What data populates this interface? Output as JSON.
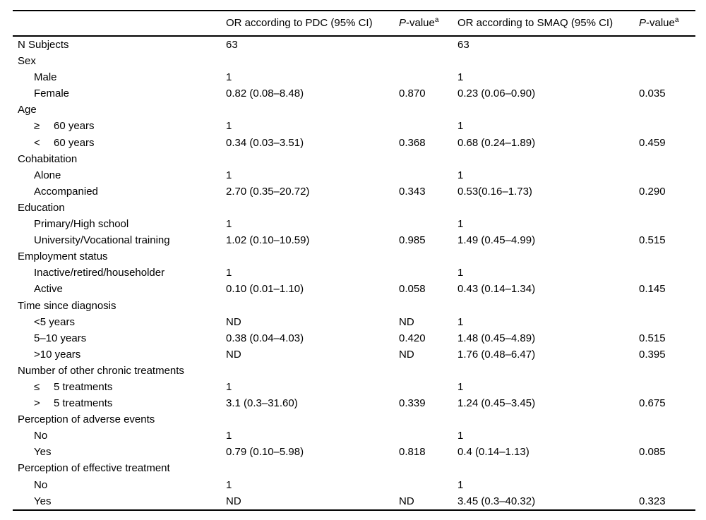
{
  "colors": {
    "background": "#ffffff",
    "text": "#000000",
    "rule": "#000000"
  },
  "table": {
    "header": {
      "variable_label": "",
      "or_pdc": "OR according to PDC (95% CI)",
      "pvalue_italic": "P",
      "pvalue_rest": "-value",
      "pvalue_sup": "a",
      "or_smaq": "OR according to SMAQ (95% CI)"
    },
    "column_names": [
      "",
      "OR according to PDC (95% CI)",
      "P-value a",
      "OR according to SMAQ (95% CI)",
      "P-value a"
    ],
    "rows": [
      {
        "label": "N Subjects",
        "indent": 0,
        "cells": [
          "63",
          "",
          "63",
          ""
        ]
      },
      {
        "label": "Sex",
        "indent": 0,
        "cells": [
          "",
          "",
          "",
          ""
        ]
      },
      {
        "label": "Male",
        "indent": 1,
        "cells": [
          "1",
          "",
          "1",
          ""
        ]
      },
      {
        "label": "Female",
        "indent": 1,
        "cells": [
          "0.82 (0.08–8.48)",
          "0.870",
          "0.23 (0.06–0.90)",
          "0.035"
        ]
      },
      {
        "label": "Age",
        "indent": 0,
        "cells": [
          "",
          "",
          "",
          ""
        ]
      },
      {
        "label": "60 years",
        "symbol": "≥",
        "indent": 1,
        "cells": [
          "1",
          "",
          "1",
          ""
        ]
      },
      {
        "label": "60 years",
        "symbol": "<",
        "indent": 1,
        "cells": [
          "0.34 (0.03–3.51)",
          "0.368",
          "0.68 (0.24–1.89)",
          "0.459"
        ]
      },
      {
        "label": "Cohabitation",
        "indent": 0,
        "cells": [
          "",
          "",
          "",
          ""
        ]
      },
      {
        "label": "Alone",
        "indent": 1,
        "cells": [
          "1",
          "",
          "1",
          ""
        ]
      },
      {
        "label": "Accompanied",
        "indent": 1,
        "cells": [
          "2.70 (0.35–20.72)",
          "0.343",
          "0.53(0.16–1.73)",
          "0.290"
        ]
      },
      {
        "label": "Education",
        "indent": 0,
        "cells": [
          "",
          "",
          "",
          ""
        ]
      },
      {
        "label": "Primary/High school",
        "indent": 1,
        "cells": [
          "1",
          "",
          "1",
          ""
        ]
      },
      {
        "label": "University/Vocational training",
        "indent": 1,
        "cells": [
          "1.02 (0.10–10.59)",
          "0.985",
          "1.49 (0.45–4.99)",
          "0.515"
        ]
      },
      {
        "label": "Employment status",
        "indent": 0,
        "cells": [
          "",
          "",
          "",
          ""
        ]
      },
      {
        "label": "Inactive/retired/householder",
        "indent": 1,
        "cells": [
          "1",
          "",
          "1",
          ""
        ]
      },
      {
        "label": "Active",
        "indent": 1,
        "cells": [
          "0.10 (0.01–1.10)",
          "0.058",
          "0.43 (0.14–1.34)",
          "0.145"
        ]
      },
      {
        "label": "Time since diagnosis",
        "indent": 0,
        "cells": [
          "",
          "",
          "",
          ""
        ]
      },
      {
        "label": "<5 years",
        "indent": 1,
        "cells": [
          "ND",
          "ND",
          "1",
          ""
        ]
      },
      {
        "label": "5–10 years",
        "indent": 1,
        "cells": [
          "0.38 (0.04–4.03)",
          "0.420",
          "1.48 (0.45–4.89)",
          "0.515"
        ]
      },
      {
        "label": ">10 years",
        "indent": 1,
        "cells": [
          "ND",
          "ND",
          "1.76 (0.48–6.47)",
          "0.395"
        ]
      },
      {
        "label": "Number of other chronic treatments",
        "indent": 0,
        "cells": [
          "",
          "",
          "",
          ""
        ]
      },
      {
        "label": "5 treatments",
        "symbol": "≤",
        "indent": 1,
        "cells": [
          "1",
          "",
          "1",
          ""
        ]
      },
      {
        "label": "5 treatments",
        "symbol": ">",
        "indent": 1,
        "cells": [
          "3.1 (0.3–31.60)",
          "0.339",
          "1.24 (0.45–3.45)",
          "0.675"
        ]
      },
      {
        "label": "Perception of adverse events",
        "indent": 0,
        "cells": [
          "",
          "",
          "",
          ""
        ]
      },
      {
        "label": "No",
        "indent": 1,
        "cells": [
          "1",
          "",
          "1",
          ""
        ]
      },
      {
        "label": "Yes",
        "indent": 1,
        "cells": [
          "0.79 (0.10–5.98)",
          "0.818",
          "0.4 (0.14–1.13)",
          "0.085"
        ]
      },
      {
        "label": "Perception of effective treatment",
        "indent": 0,
        "cells": [
          "",
          "",
          "",
          ""
        ]
      },
      {
        "label": "No",
        "indent": 1,
        "cells": [
          "1",
          "",
          "1",
          ""
        ]
      },
      {
        "label": "Yes",
        "indent": 1,
        "cells": [
          "ND",
          "ND",
          "3.45 (0.3–40.32)",
          "0.323"
        ]
      }
    ]
  }
}
